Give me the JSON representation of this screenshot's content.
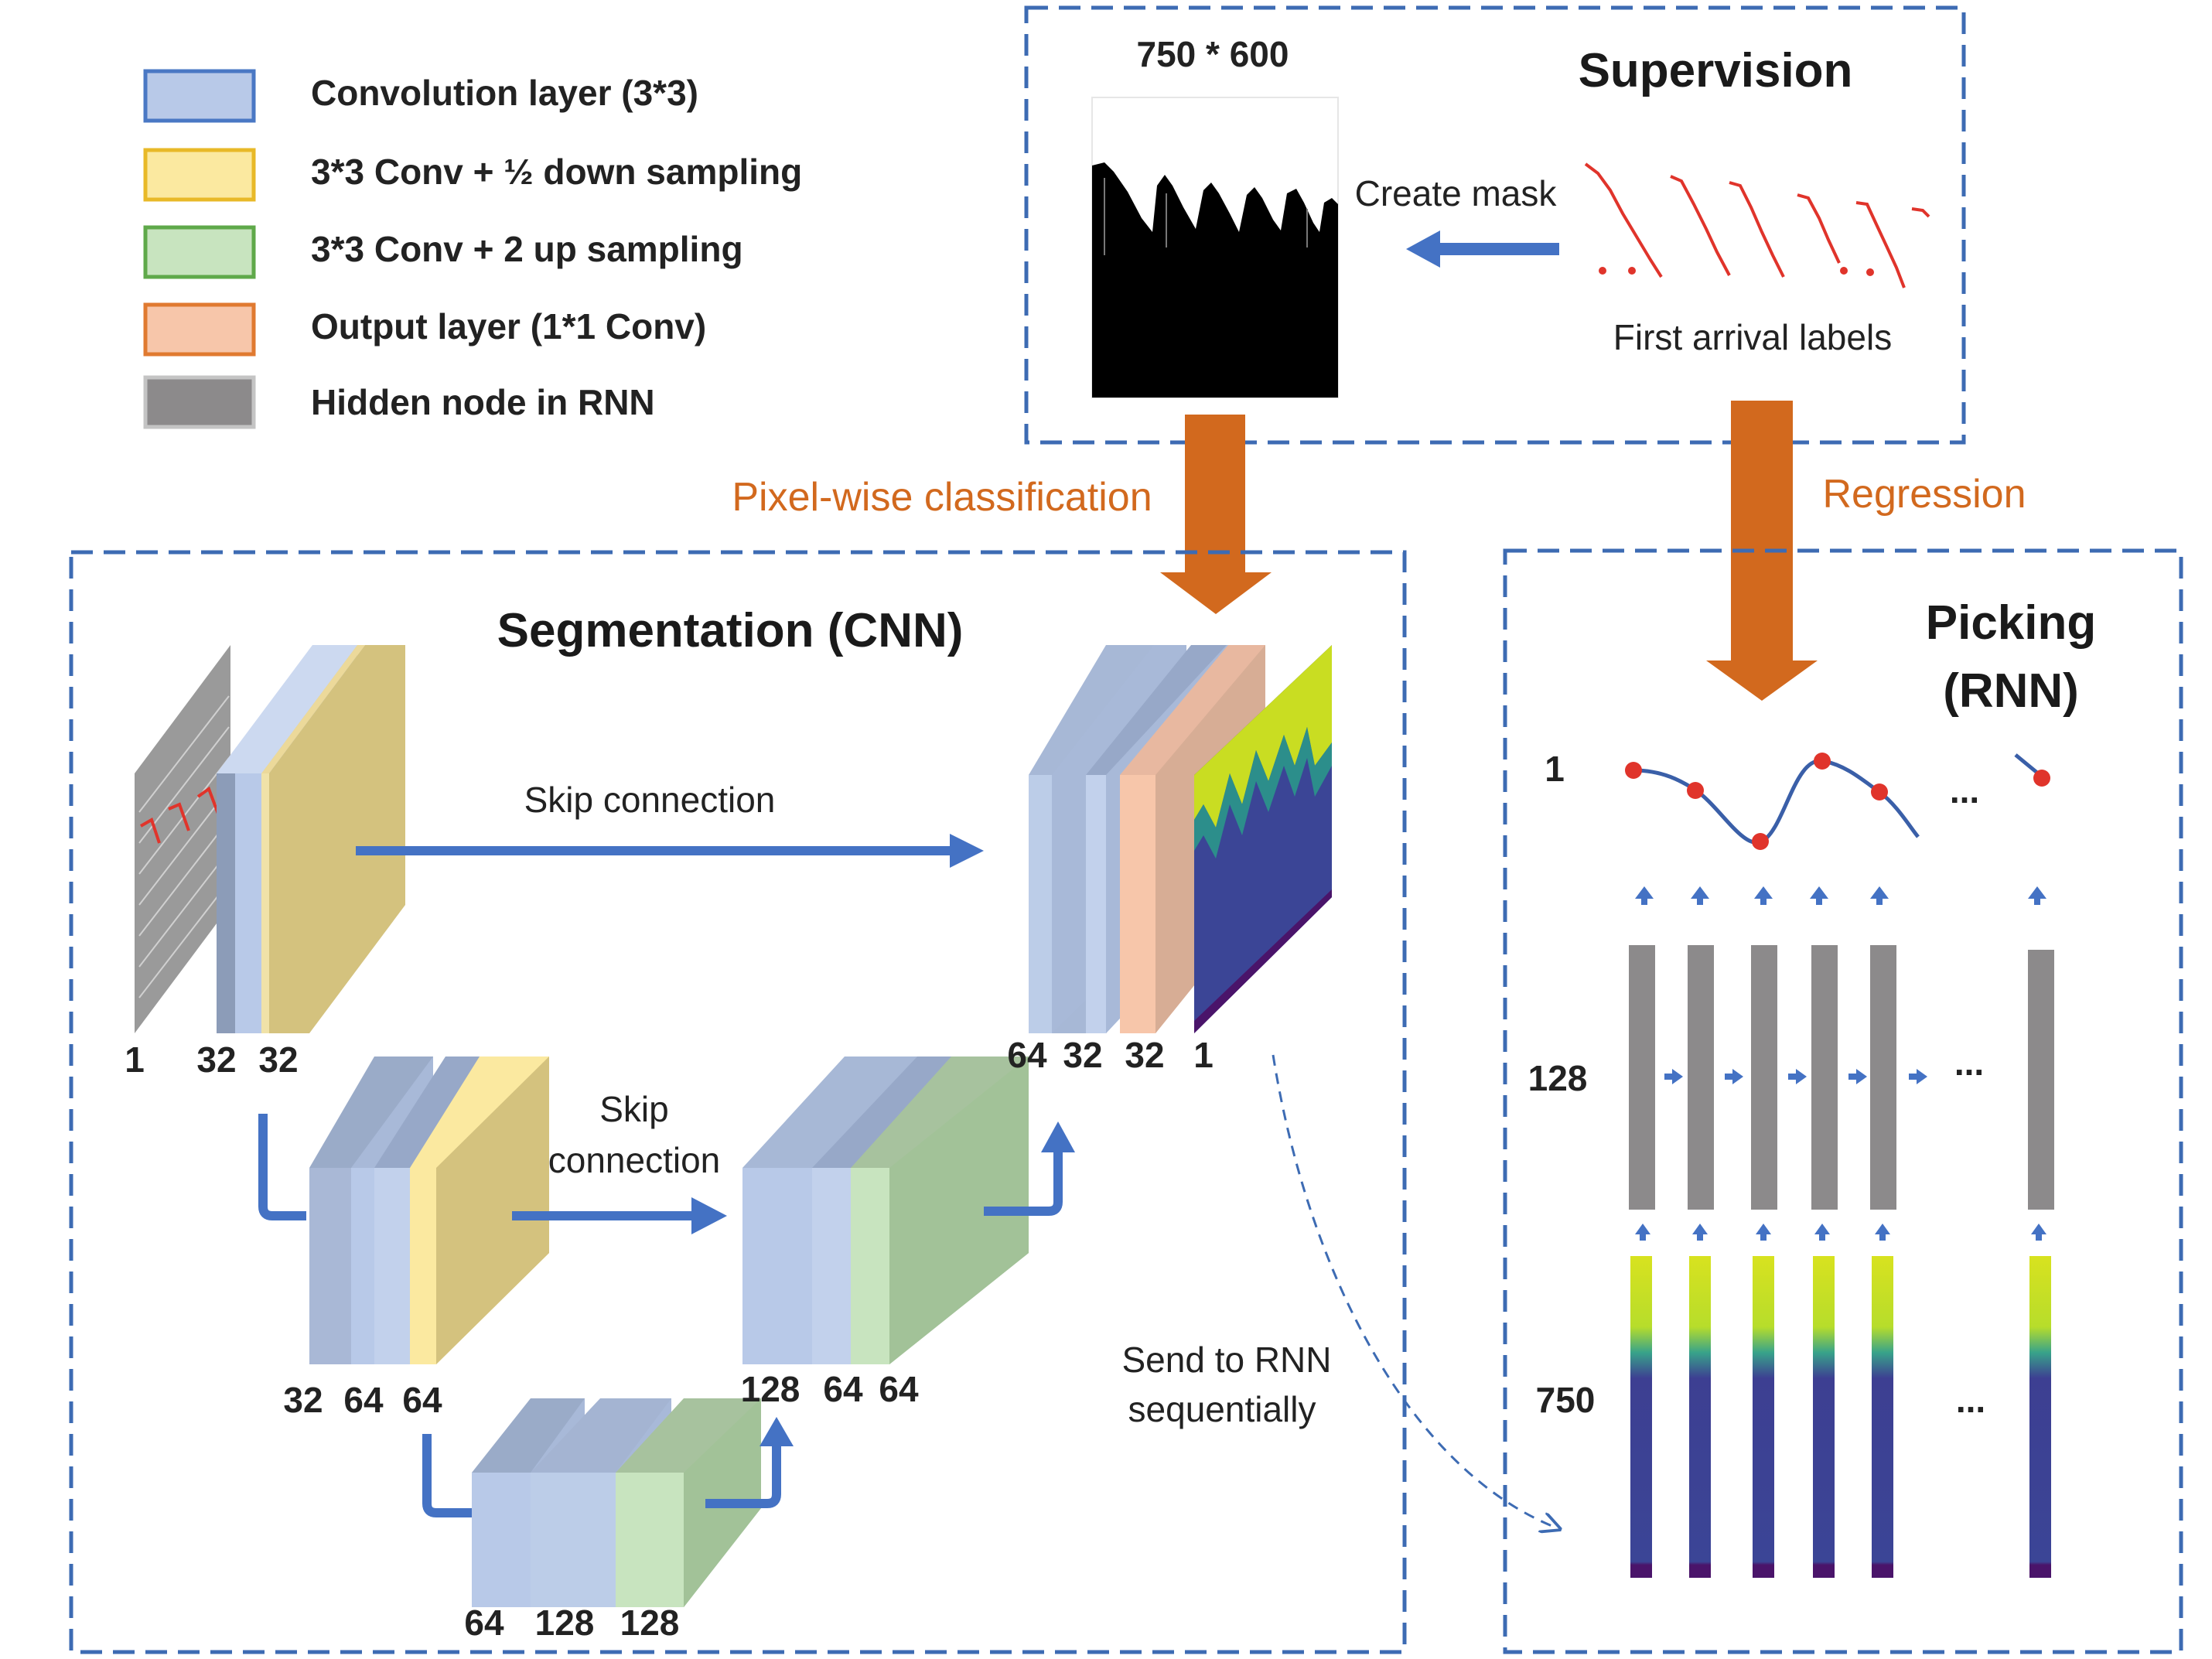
{
  "legend": {
    "conv": "Convolution layer (3*3)",
    "down": "3*3 Conv + ½ down sampling",
    "up": "3*3 Conv + 2 up sampling",
    "output": "Output layer (1*1 Conv)",
    "hidden": "Hidden node in RNN"
  },
  "supervision": {
    "title": "Supervision",
    "size_label": "750 * 600",
    "create_mask": "Create mask",
    "first_arrival": "First arrival labels"
  },
  "flow": {
    "pixel_wise": "Pixel-wise classification",
    "regression": "Regression",
    "send_to_rnn_1": "Send to RNN",
    "send_to_rnn_2": "sequentially"
  },
  "segmentation": {
    "title": "Segmentation (CNN)",
    "skip_top": "Skip connection",
    "skip_mid_1": "Skip",
    "skip_mid_2": "connection",
    "enc1": [
      "1",
      "32",
      "32"
    ],
    "enc2": [
      "32",
      "64",
      "64"
    ],
    "bottom": [
      "64",
      "128",
      "128"
    ],
    "dec2": [
      "128",
      "64",
      "64"
    ],
    "dec1": [
      "64",
      "32",
      "32",
      "1"
    ]
  },
  "picking": {
    "title_1": "Picking",
    "title_2": "(RNN)",
    "row_output": "1",
    "row_hidden": "128",
    "row_input": "750",
    "ellipsis": "..."
  },
  "colors": {
    "conv": "#b8c9e8",
    "down": "#fbe9a0",
    "up": "#c8e4bf",
    "output": "#f7c6aa",
    "hidden": "#8c8a8b",
    "arrow_blue": "#4472c4",
    "arrow_orange": "#d2691e",
    "dash": "#3d6bb3"
  }
}
